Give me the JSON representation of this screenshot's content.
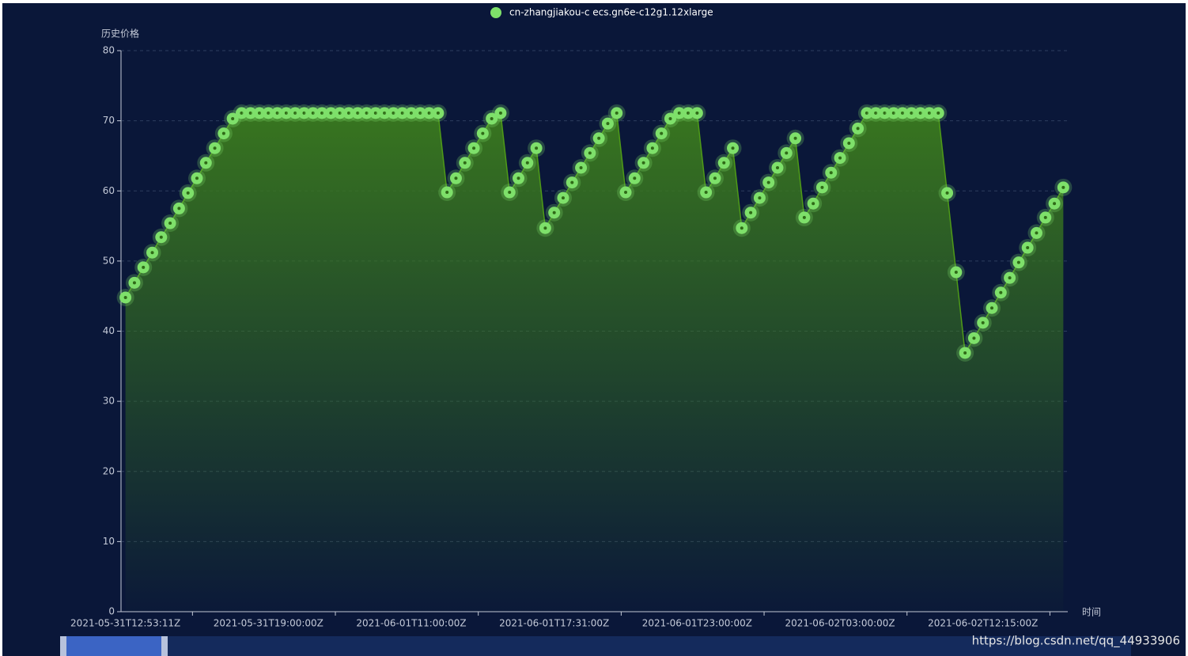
{
  "chart_data": {
    "type": "line",
    "legend": "top",
    "y_label": "历史价格",
    "x_label": "时间",
    "grid": true,
    "ylim": [
      0,
      80
    ],
    "yticks": [
      0,
      10,
      20,
      30,
      40,
      50,
      60,
      70,
      80
    ],
    "categories": [
      "2021-05-31T12:53:11Z",
      null,
      null,
      null,
      null,
      null,
      null,
      null,
      null,
      null,
      null,
      null,
      null,
      null,
      null,
      null,
      "2021-05-31T19:00:00Z",
      null,
      null,
      null,
      null,
      null,
      null,
      null,
      null,
      null,
      null,
      null,
      null,
      null,
      null,
      null,
      "2021-06-01T11:00:00Z",
      null,
      null,
      null,
      null,
      null,
      null,
      null,
      null,
      null,
      null,
      null,
      null,
      null,
      null,
      null,
      "2021-06-01T17:31:00Z",
      null,
      null,
      null,
      null,
      null,
      null,
      null,
      null,
      null,
      null,
      null,
      null,
      null,
      null,
      null,
      "2021-06-01T23:00:00Z",
      null,
      null,
      null,
      null,
      null,
      null,
      null,
      null,
      null,
      null,
      null,
      null,
      null,
      null,
      null,
      "2021-06-02T03:00:00Z",
      null,
      null,
      null,
      null,
      null,
      null,
      null,
      null,
      null,
      null,
      null,
      null,
      null,
      null,
      null,
      "2021-06-02T12:15:00Z",
      null,
      null,
      null,
      null,
      null,
      null,
      null,
      null,
      null
    ],
    "series": [
      {
        "name": "cn-zhangjiakou-c ecs.gn6e-c12g1.12xlarge",
        "color": "#7ee06a",
        "values": [
          44.8,
          46.9,
          49.1,
          51.2,
          53.4,
          55.4,
          57.5,
          59.7,
          61.8,
          64.0,
          66.1,
          68.2,
          70.3,
          71.1,
          71.1,
          71.1,
          71.1,
          71.1,
          71.1,
          71.1,
          71.1,
          71.1,
          71.1,
          71.1,
          71.1,
          71.1,
          71.1,
          71.1,
          71.1,
          71.1,
          71.1,
          71.1,
          71.1,
          71.1,
          71.1,
          71.1,
          59.8,
          61.8,
          64.0,
          66.1,
          68.2,
          70.3,
          71.1,
          59.8,
          61.8,
          64.0,
          66.1,
          54.7,
          56.9,
          59.0,
          61.2,
          63.3,
          65.4,
          67.5,
          69.6,
          71.1,
          59.8,
          61.8,
          64.0,
          66.1,
          68.2,
          70.3,
          71.1,
          71.1,
          71.1,
          59.8,
          61.8,
          64.0,
          66.1,
          54.7,
          56.9,
          59.0,
          61.2,
          63.3,
          65.4,
          67.5,
          56.2,
          58.2,
          60.5,
          62.6,
          64.7,
          66.8,
          68.9,
          71.1,
          71.1,
          71.1,
          71.1,
          71.1,
          71.1,
          71.1,
          71.1,
          71.1,
          59.7,
          48.4,
          36.9,
          39.0,
          41.2,
          43.3,
          45.5,
          47.6,
          49.8,
          51.9,
          54.0,
          56.2,
          58.2,
          60.5
        ]
      }
    ]
  },
  "watermark": "https://blog.csdn.net/qq_44933906"
}
